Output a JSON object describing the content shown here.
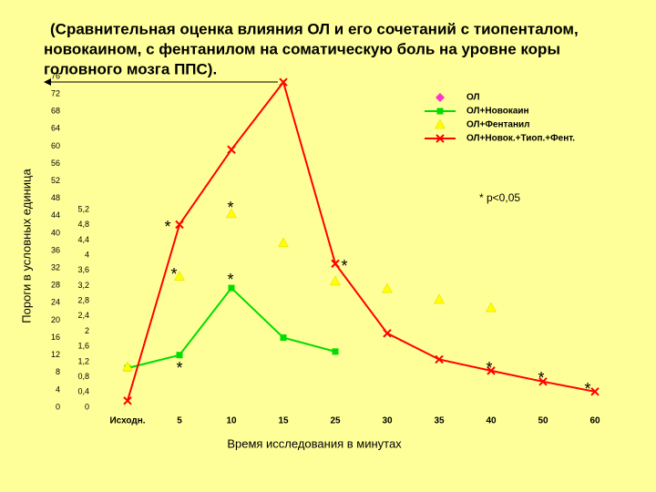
{
  "chart_data": {
    "type": "line",
    "title": [
      "(Сравнительная оценка влияния ОЛ и его сочетаний с тиопенталом,",
      "новокаином, с фентанилом на соматическую боль на уровне коры",
      "головного мозга ППС)."
    ],
    "y_label": "Пороги в условных единица",
    "x_label": "Время исследования в минутах",
    "note": "* р<0,05",
    "annotations": [
      "*",
      "*",
      "*",
      "*",
      "*",
      "*",
      "*",
      "*",
      "*"
    ],
    "categories": [
      "Исходн.",
      "5",
      "10",
      "15",
      "25",
      "30",
      "35",
      "40",
      "50",
      "60"
    ],
    "series": [
      {
        "name": "ОЛ",
        "color": "#ff33cc",
        "marker": "diamond",
        "line": false,
        "values": [
          null,
          null,
          null,
          null,
          null,
          null,
          null,
          null,
          null,
          null
        ]
      },
      {
        "name": "ОЛ+Новокаин",
        "color": "#00dd00",
        "marker": "square",
        "line": true,
        "values": [
          9,
          12,
          27.4,
          16,
          12.8,
          null,
          null,
          null,
          null,
          null
        ]
      },
      {
        "name": "ОЛ+Фентанил",
        "color": "#ffff00",
        "marker": "triangle",
        "line": false,
        "values": [
          9.2,
          30,
          44.4,
          37.7,
          28.9,
          27.2,
          24.7,
          22.8,
          null,
          null
        ]
      },
      {
        "name": "ОЛ+Новок.+Тиоп.+Фент.",
        "color": "#ff0000",
        "marker": "x",
        "line": true,
        "values": [
          1.5,
          42,
          59.2,
          74.7,
          33,
          17,
          11,
          8.4,
          5.9,
          3.6
        ]
      }
    ],
    "ylim": [
      0,
      76
    ],
    "yticks": [
      0,
      4,
      8,
      12,
      16,
      20,
      24,
      28,
      32,
      36,
      40,
      44,
      48,
      52,
      56,
      60,
      64,
      68,
      72,
      76
    ],
    "y2lim": [
      0,
      5.2
    ],
    "y2ticks": [
      0,
      {
        "value": 0.4,
        "label": "0,4"
      },
      {
        "value": 0.8,
        "label": "0,8"
      },
      {
        "value": 1.2,
        "label": "1,2"
      },
      {
        "value": 1.6,
        "label": "1,6"
      },
      2,
      {
        "value": 2.4,
        "label": "2,4"
      },
      {
        "value": 2.8,
        "label": "2,8"
      },
      {
        "value": 3.2,
        "label": "3,2"
      },
      {
        "value": 3.6,
        "label": "3,6"
      },
      4,
      {
        "value": 4.4,
        "label": "4,4"
      },
      {
        "value": 4.8,
        "label": "4,8"
      },
      {
        "value": 5.2,
        "label": "5,2"
      }
    ],
    "grid": false
  }
}
